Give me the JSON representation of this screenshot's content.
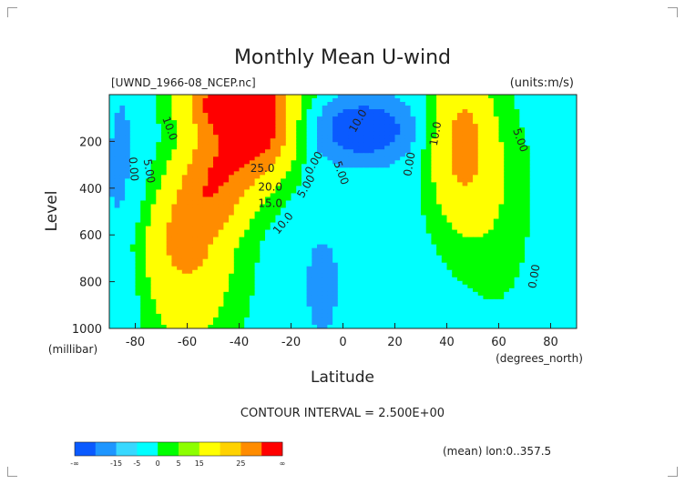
{
  "chart_data": {
    "type": "contour",
    "title": "Monthly Mean U-wind",
    "subtitle_left": "[UWND_1966-08_NCEP.nc]",
    "subtitle_right": "(units:m/s)",
    "xlabel": "Latitude",
    "xunit": "(degrees_north)",
    "ylabel": "Level",
    "yunit": "(millibar)",
    "xlim": [
      -90,
      90
    ],
    "ylim": [
      1000,
      0
    ],
    "x_ticks": [
      -80,
      -60,
      -40,
      -20,
      0,
      20,
      40,
      60,
      80
    ],
    "y_ticks": [
      200,
      400,
      600,
      800,
      1000
    ],
    "contour_interval_text": "CONTOUR INTERVAL = 2.500E+00",
    "footer_note": "(mean) lon:0..357.5",
    "colorbar": {
      "labels": [
        "-∞",
        "-15",
        "-5",
        "0",
        "5",
        "15",
        "25",
        "∞"
      ],
      "colors": [
        "#0a5aff",
        "#1e96ff",
        "#38d8ff",
        "#00ffff",
        "#00ff00",
        "#8cff00",
        "#ffff00",
        "#ffd200",
        "#ff8c00",
        "#ff0000"
      ]
    },
    "contour_labels": [
      {
        "text": "10.0",
        "x": -68,
        "y": 150,
        "rot": 70
      },
      {
        "text": "5.00",
        "x": -76,
        "y": 330,
        "rot": 80
      },
      {
        "text": "0.00",
        "x": -82,
        "y": 320,
        "rot": 85
      },
      {
        "text": "25.0",
        "x": -31,
        "y": 330,
        "rot": 0
      },
      {
        "text": "20.0",
        "x": -28,
        "y": 410,
        "rot": 0
      },
      {
        "text": "15.0",
        "x": -28,
        "y": 480,
        "rot": 0
      },
      {
        "text": "10.0",
        "x": -22,
        "y": 560,
        "rot": -50
      },
      {
        "text": "5.00",
        "x": -13,
        "y": 400,
        "rot": -60
      },
      {
        "text": "0.00",
        "x": -10,
        "y": 300,
        "rot": -60
      },
      {
        "text": "5.00",
        "x": -2,
        "y": 340,
        "rot": 70
      },
      {
        "text": "10.0",
        "x": 7,
        "y": 120,
        "rot": -60
      },
      {
        "text": "0.00",
        "x": 27,
        "y": 300,
        "rot": -80
      },
      {
        "text": "10.0",
        "x": 37,
        "y": 170,
        "rot": -80
      },
      {
        "text": "5.00",
        "x": 67,
        "y": 200,
        "rot": 70
      },
      {
        "text": "0.00",
        "x": 75,
        "y": 780,
        "rot": -80
      }
    ]
  }
}
